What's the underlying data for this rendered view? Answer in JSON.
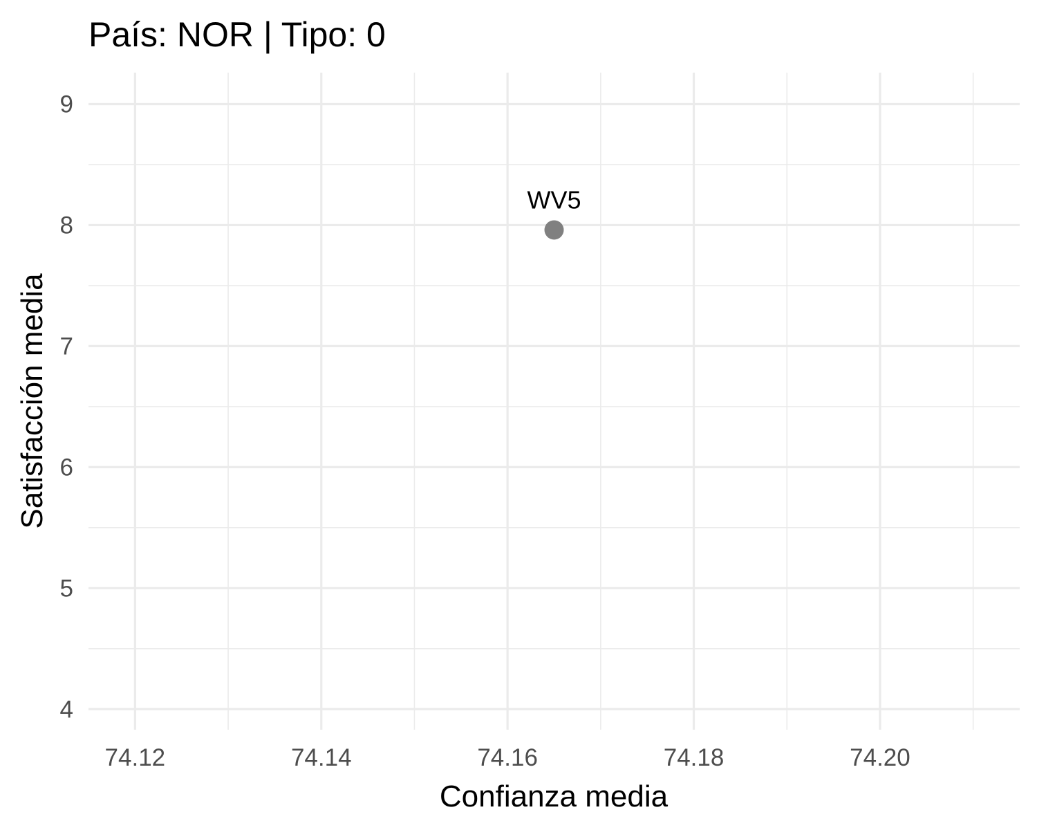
{
  "chart_data": {
    "type": "scatter",
    "title": "País: NOR | Tipo: 0",
    "xlabel": "Confianza media",
    "ylabel": "Satisfacción media",
    "xlim": [
      74.115,
      74.215
    ],
    "ylim": [
      3.83,
      9.26
    ],
    "x_ticks": [
      74.12,
      74.14,
      74.16,
      74.18,
      74.2
    ],
    "x_tick_labels": [
      "74.12",
      "74.14",
      "74.16",
      "74.18",
      "74.20"
    ],
    "x_minor_ticks": [
      74.13,
      74.15,
      74.17,
      74.19,
      74.21
    ],
    "y_ticks": [
      4,
      5,
      6,
      7,
      8,
      9
    ],
    "y_tick_labels": [
      "4",
      "5",
      "6",
      "7",
      "8",
      "9"
    ],
    "y_minor_ticks": [
      4.5,
      5.5,
      6.5,
      7.5,
      8.5
    ],
    "grid": true,
    "point_color": "#808080",
    "points": [
      {
        "x": 74.165,
        "y": 7.96,
        "label": "WV5"
      }
    ]
  }
}
